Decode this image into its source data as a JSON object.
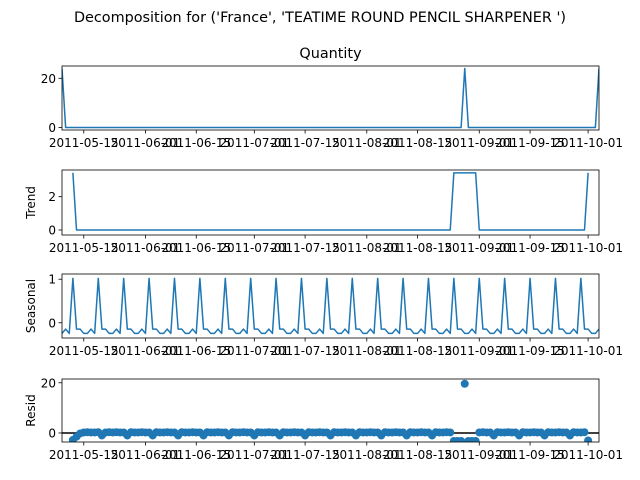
{
  "figure": {
    "suptitle": "Decomposition for ('France', 'TEATIME ROUND PENCIL SHARPENER ')"
  },
  "colors": {
    "series": "#1f77b4",
    "axis": "#000000",
    "background": "#ffffff"
  },
  "chart_data": [
    {
      "type": "line",
      "title": "Quantity",
      "ylabel": "",
      "x_start": "2011-05-09",
      "x_end": "2011-10-04",
      "ylim": [
        -1,
        25
      ],
      "yticks": [
        0,
        20
      ],
      "xticks": [
        "2011-05-15",
        "2011-06-01",
        "2011-06-15",
        "2011-07-01",
        "2011-07-15",
        "2011-08-01",
        "2011-08-15",
        "2011-09-01",
        "2011-09-15",
        "2011-10-01"
      ],
      "series": [
        {
          "values": [
            {
              "x": "2011-05-09",
              "y": 24
            },
            {
              "x": "2011-05-10",
              "y": 0
            },
            {
              "x": "2011-08-27",
              "y": 0
            },
            {
              "x": "2011-08-28",
              "y": 24
            },
            {
              "x": "2011-08-29",
              "y": 0
            },
            {
              "x": "2011-10-03",
              "y": 0
            },
            {
              "x": "2011-10-04",
              "y": 24
            }
          ]
        }
      ]
    },
    {
      "type": "line",
      "title": "",
      "ylabel": "Trend",
      "x_start": "2011-05-09",
      "x_end": "2011-10-04",
      "ylim": [
        -0.3,
        3.6
      ],
      "yticks": [
        0,
        2
      ],
      "xticks": [
        "2011-05-15",
        "2011-06-01",
        "2011-06-15",
        "2011-07-01",
        "2011-07-15",
        "2011-08-01",
        "2011-08-15",
        "2011-09-01",
        "2011-09-15",
        "2011-10-01"
      ],
      "series": [
        {
          "values": [
            {
              "x": "2011-05-12",
              "y": 3.43
            },
            {
              "x": "2011-05-13",
              "y": 0
            },
            {
              "x": "2011-08-24",
              "y": 0
            },
            {
              "x": "2011-08-25",
              "y": 3.43
            },
            {
              "x": "2011-08-31",
              "y": 3.43
            },
            {
              "x": "2011-09-01",
              "y": 0
            },
            {
              "x": "2011-09-30",
              "y": 0
            },
            {
              "x": "2011-10-01",
              "y": 3.43
            }
          ]
        }
      ]
    },
    {
      "type": "line",
      "title": "",
      "ylabel": "Seasonal",
      "x_start": "2011-05-09",
      "x_end": "2011-10-04",
      "ylim": [
        -0.35,
        1.12
      ],
      "yticks": [
        0,
        1
      ],
      "xticks": [
        "2011-05-15",
        "2011-06-01",
        "2011-06-15",
        "2011-07-01",
        "2011-07-15",
        "2011-08-01",
        "2011-08-15",
        "2011-09-01",
        "2011-09-15",
        "2011-10-01"
      ],
      "period_days": 7,
      "weekly_pattern": [
        -0.245,
        -0.145,
        -0.245,
        1.02,
        -0.145,
        -0.145,
        -0.245
      ],
      "series": [
        {
          "values": []
        }
      ]
    },
    {
      "type": "scatter",
      "title": "",
      "ylabel": "Resid",
      "x_start": "2011-05-09",
      "x_end": "2011-10-04",
      "ylim": [
        -3.6,
        21.5
      ],
      "yticks": [
        0,
        20
      ],
      "zero_line": true,
      "xticks": [
        "2011-05-15",
        "2011-06-01",
        "2011-06-15",
        "2011-07-01",
        "2011-07-15",
        "2011-08-01",
        "2011-08-15",
        "2011-09-01",
        "2011-09-15",
        "2011-10-01"
      ],
      "series": [
        {
          "values": [
            {
              "x": "2011-05-12",
              "y": -2.8
            },
            {
              "x": "2011-05-13",
              "y": -1.5
            },
            {
              "x": "2011-05-14",
              "y": -0.2
            },
            {
              "x": "2011-05-15",
              "y": 0.2
            },
            {
              "x": "2011-05-16",
              "y": 0.3
            },
            {
              "x": "2011-05-17",
              "y": 0.2
            },
            {
              "x": "2011-05-18",
              "y": 0.2
            },
            {
              "x": "2011-05-19",
              "y": 0.3
            },
            {
              "x": "2011-05-20",
              "y": -1.0
            },
            {
              "x": "2011-05-21",
              "y": 0.2
            },
            {
              "x": "2011-05-22",
              "y": 0.3
            },
            {
              "x": "2011-05-23",
              "y": 0.2
            },
            {
              "x": "2011-05-24",
              "y": 0.3
            },
            {
              "x": "2011-05-25",
              "y": 0.2
            },
            {
              "x": "2011-05-26",
              "y": 0.2
            },
            {
              "x": "2011-05-27",
              "y": -1.0
            },
            {
              "x": "2011-05-28",
              "y": 0.3
            },
            {
              "x": "2011-05-29",
              "y": 0.2
            },
            {
              "x": "2011-05-30",
              "y": 0.2
            },
            {
              "x": "2011-05-31",
              "y": 0.3
            },
            {
              "x": "2011-06-01",
              "y": 0.2
            },
            {
              "x": "2011-06-02",
              "y": 0.2
            },
            {
              "x": "2011-06-03",
              "y": -1.0
            },
            {
              "x": "2011-06-04",
              "y": 0.3
            },
            {
              "x": "2011-06-05",
              "y": 0.2
            },
            {
              "x": "2011-06-06",
              "y": 0.2
            },
            {
              "x": "2011-06-07",
              "y": 0.3
            },
            {
              "x": "2011-06-08",
              "y": 0.2
            },
            {
              "x": "2011-06-09",
              "y": 0.2
            },
            {
              "x": "2011-06-10",
              "y": -1.0
            },
            {
              "x": "2011-06-11",
              "y": 0.3
            },
            {
              "x": "2011-06-12",
              "y": 0.2
            },
            {
              "x": "2011-06-13",
              "y": 0.2
            },
            {
              "x": "2011-06-14",
              "y": 0.3
            },
            {
              "x": "2011-06-15",
              "y": 0.2
            },
            {
              "x": "2011-06-16",
              "y": 0.2
            },
            {
              "x": "2011-06-17",
              "y": -1.0
            },
            {
              "x": "2011-06-18",
              "y": 0.3
            },
            {
              "x": "2011-06-19",
              "y": 0.2
            },
            {
              "x": "2011-06-20",
              "y": 0.2
            },
            {
              "x": "2011-06-21",
              "y": 0.3
            },
            {
              "x": "2011-06-22",
              "y": 0.2
            },
            {
              "x": "2011-06-23",
              "y": 0.2
            },
            {
              "x": "2011-06-24",
              "y": -1.0
            },
            {
              "x": "2011-06-25",
              "y": 0.3
            },
            {
              "x": "2011-06-26",
              "y": 0.2
            },
            {
              "x": "2011-06-27",
              "y": 0.2
            },
            {
              "x": "2011-06-28",
              "y": 0.3
            },
            {
              "x": "2011-06-29",
              "y": 0.2
            },
            {
              "x": "2011-06-30",
              "y": 0.2
            },
            {
              "x": "2011-07-01",
              "y": -1.0
            },
            {
              "x": "2011-07-02",
              "y": 0.3
            },
            {
              "x": "2011-07-03",
              "y": 0.2
            },
            {
              "x": "2011-07-04",
              "y": 0.2
            },
            {
              "x": "2011-07-05",
              "y": 0.3
            },
            {
              "x": "2011-07-06",
              "y": 0.2
            },
            {
              "x": "2011-07-07",
              "y": 0.2
            },
            {
              "x": "2011-07-08",
              "y": -1.0
            },
            {
              "x": "2011-07-09",
              "y": 0.3
            },
            {
              "x": "2011-07-10",
              "y": 0.2
            },
            {
              "x": "2011-07-11",
              "y": 0.2
            },
            {
              "x": "2011-07-12",
              "y": 0.3
            },
            {
              "x": "2011-07-13",
              "y": 0.2
            },
            {
              "x": "2011-07-14",
              "y": 0.2
            },
            {
              "x": "2011-07-15",
              "y": -1.0
            },
            {
              "x": "2011-07-16",
              "y": 0.3
            },
            {
              "x": "2011-07-17",
              "y": 0.2
            },
            {
              "x": "2011-07-18",
              "y": 0.2
            },
            {
              "x": "2011-07-19",
              "y": 0.3
            },
            {
              "x": "2011-07-20",
              "y": 0.2
            },
            {
              "x": "2011-07-21",
              "y": 0.2
            },
            {
              "x": "2011-07-22",
              "y": -1.0
            },
            {
              "x": "2011-07-23",
              "y": 0.3
            },
            {
              "x": "2011-07-24",
              "y": 0.2
            },
            {
              "x": "2011-07-25",
              "y": 0.2
            },
            {
              "x": "2011-07-26",
              "y": 0.3
            },
            {
              "x": "2011-07-27",
              "y": 0.2
            },
            {
              "x": "2011-07-28",
              "y": 0.2
            },
            {
              "x": "2011-07-29",
              "y": -1.0
            },
            {
              "x": "2011-07-30",
              "y": 0.3
            },
            {
              "x": "2011-07-31",
              "y": 0.2
            },
            {
              "x": "2011-08-01",
              "y": 0.2
            },
            {
              "x": "2011-08-02",
              "y": 0.3
            },
            {
              "x": "2011-08-03",
              "y": 0.2
            },
            {
              "x": "2011-08-04",
              "y": 0.2
            },
            {
              "x": "2011-08-05",
              "y": -1.0
            },
            {
              "x": "2011-08-06",
              "y": 0.3
            },
            {
              "x": "2011-08-07",
              "y": 0.2
            },
            {
              "x": "2011-08-08",
              "y": 0.2
            },
            {
              "x": "2011-08-09",
              "y": 0.3
            },
            {
              "x": "2011-08-10",
              "y": 0.2
            },
            {
              "x": "2011-08-11",
              "y": 0.2
            },
            {
              "x": "2011-08-12",
              "y": -1.0
            },
            {
              "x": "2011-08-13",
              "y": 0.3
            },
            {
              "x": "2011-08-14",
              "y": 0.2
            },
            {
              "x": "2011-08-15",
              "y": 0.2
            },
            {
              "x": "2011-08-16",
              "y": 0.3
            },
            {
              "x": "2011-08-17",
              "y": 0.2
            },
            {
              "x": "2011-08-18",
              "y": 0.2
            },
            {
              "x": "2011-08-19",
              "y": -1.0
            },
            {
              "x": "2011-08-20",
              "y": 0.3
            },
            {
              "x": "2011-08-21",
              "y": 0.2
            },
            {
              "x": "2011-08-22",
              "y": 0.2
            },
            {
              "x": "2011-08-23",
              "y": 0.3
            },
            {
              "x": "2011-08-24",
              "y": 0.2
            },
            {
              "x": "2011-08-25",
              "y": -3.2
            },
            {
              "x": "2011-08-26",
              "y": -3.2
            },
            {
              "x": "2011-08-27",
              "y": -3.2
            },
            {
              "x": "2011-08-28",
              "y": 19.6
            },
            {
              "x": "2011-08-29",
              "y": -3.2
            },
            {
              "x": "2011-08-30",
              "y": -3.2
            },
            {
              "x": "2011-08-31",
              "y": -3.2
            },
            {
              "x": "2011-09-01",
              "y": 0.2
            },
            {
              "x": "2011-09-02",
              "y": 0.3
            },
            {
              "x": "2011-09-03",
              "y": 0.2
            },
            {
              "x": "2011-09-04",
              "y": 0.2
            },
            {
              "x": "2011-09-05",
              "y": -1.0
            },
            {
              "x": "2011-09-06",
              "y": 0.3
            },
            {
              "x": "2011-09-07",
              "y": 0.2
            },
            {
              "x": "2011-09-08",
              "y": 0.2
            },
            {
              "x": "2011-09-09",
              "y": 0.3
            },
            {
              "x": "2011-09-10",
              "y": 0.2
            },
            {
              "x": "2011-09-11",
              "y": 0.2
            },
            {
              "x": "2011-09-12",
              "y": -1.0
            },
            {
              "x": "2011-09-13",
              "y": 0.3
            },
            {
              "x": "2011-09-14",
              "y": 0.2
            },
            {
              "x": "2011-09-15",
              "y": 0.2
            },
            {
              "x": "2011-09-16",
              "y": 0.3
            },
            {
              "x": "2011-09-17",
              "y": 0.2
            },
            {
              "x": "2011-09-18",
              "y": 0.2
            },
            {
              "x": "2011-09-19",
              "y": -1.0
            },
            {
              "x": "2011-09-20",
              "y": 0.3
            },
            {
              "x": "2011-09-21",
              "y": 0.2
            },
            {
              "x": "2011-09-22",
              "y": 0.2
            },
            {
              "x": "2011-09-23",
              "y": 0.3
            },
            {
              "x": "2011-09-24",
              "y": 0.2
            },
            {
              "x": "2011-09-25",
              "y": 0.2
            },
            {
              "x": "2011-09-26",
              "y": -1.0
            },
            {
              "x": "2011-09-27",
              "y": 0.3
            },
            {
              "x": "2011-09-28",
              "y": 0.2
            },
            {
              "x": "2011-09-29",
              "y": 0.2
            },
            {
              "x": "2011-09-30",
              "y": 0.3
            },
            {
              "x": "2011-10-01",
              "y": -3.0
            }
          ]
        }
      ]
    }
  ]
}
